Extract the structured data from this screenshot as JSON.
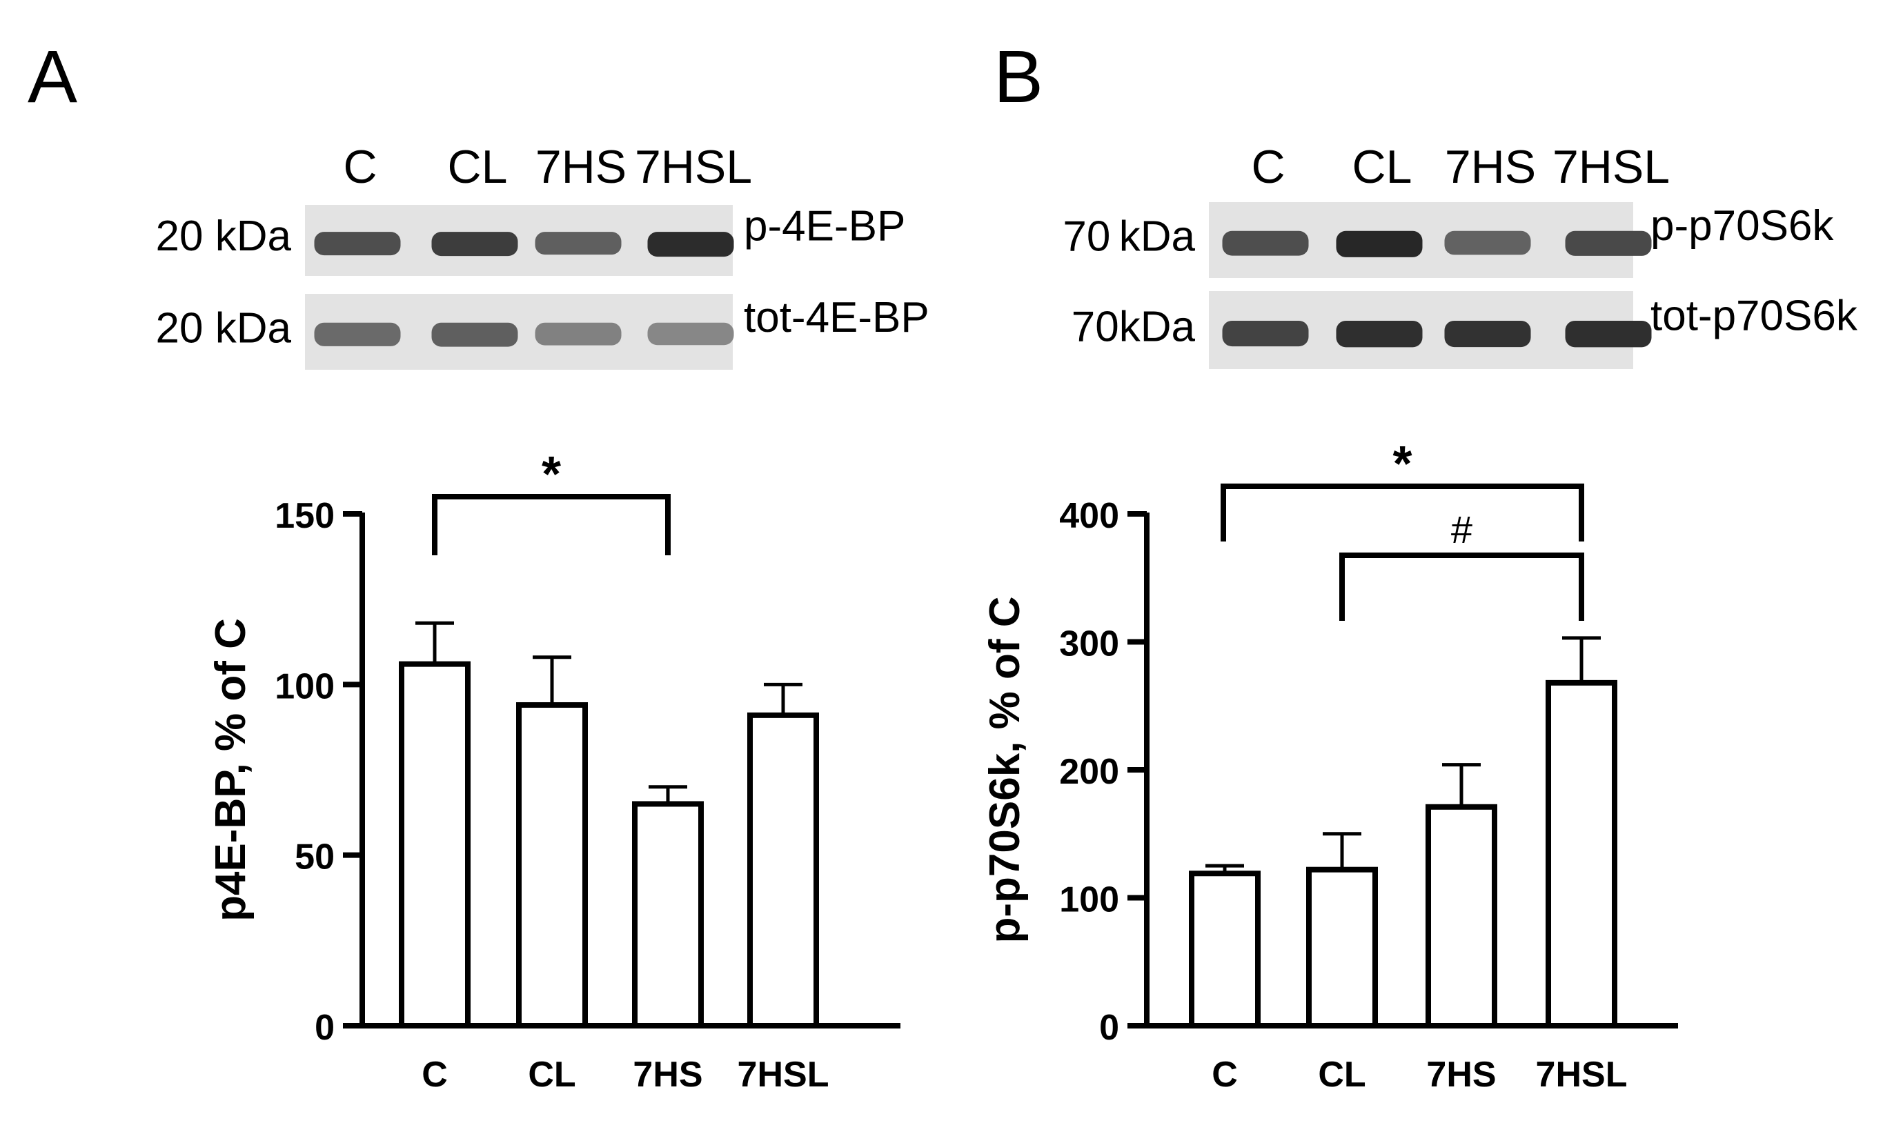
{
  "panels": [
    {
      "panel_label": "A",
      "lane_labels": [
        "C",
        "CL",
        "7HS",
        "7HSL"
      ],
      "blots": [
        {
          "mw": "20 kDa",
          "name": "p-4E-BP",
          "band_intensity": [
            0.72,
            0.82,
            0.62,
            0.92
          ]
        },
        {
          "mw": "20 kDa",
          "name": "tot-4E-BP",
          "band_intensity": [
            0.55,
            0.62,
            0.42,
            0.38
          ]
        }
      ]
    },
    {
      "panel_label": "B",
      "lane_labels": [
        "C",
        "CL",
        "7HS",
        "7HSL"
      ],
      "blots": [
        {
          "mw": "70 kDa",
          "name": "p-p70S6k",
          "band_intensity": [
            0.72,
            0.95,
            0.6,
            0.75
          ]
        },
        {
          "mw": "70kDa",
          "name": "tot-p70S6k",
          "band_intensity": [
            0.78,
            0.9,
            0.88,
            0.9
          ]
        }
      ]
    }
  ],
  "chart_data": [
    {
      "type": "bar",
      "categories": [
        "C",
        "CL",
        "7HS",
        "7HSL"
      ],
      "values": [
        106,
        94,
        65,
        91
      ],
      "error": [
        12,
        14,
        5,
        9
      ],
      "ylabel": "p4E-BP, % of C",
      "ylim": [
        0,
        150
      ],
      "yticks": [
        0,
        50,
        100,
        150
      ],
      "grid": false,
      "significance": [
        {
          "from": 0,
          "to": 2,
          "label": "*"
        }
      ]
    },
    {
      "type": "bar",
      "categories": [
        "C",
        "CL",
        "7HS",
        "7HSL"
      ],
      "values": [
        119,
        122,
        171,
        268
      ],
      "error": [
        6,
        28,
        33,
        35
      ],
      "ylabel": "p-p70S6k, % of C",
      "ylim": [
        0,
        400
      ],
      "yticks": [
        0,
        100,
        200,
        300,
        400
      ],
      "grid": false,
      "significance": [
        {
          "from": 0,
          "to": 3,
          "label": "*"
        },
        {
          "from": 1,
          "to": 3,
          "label": "#"
        }
      ]
    }
  ]
}
